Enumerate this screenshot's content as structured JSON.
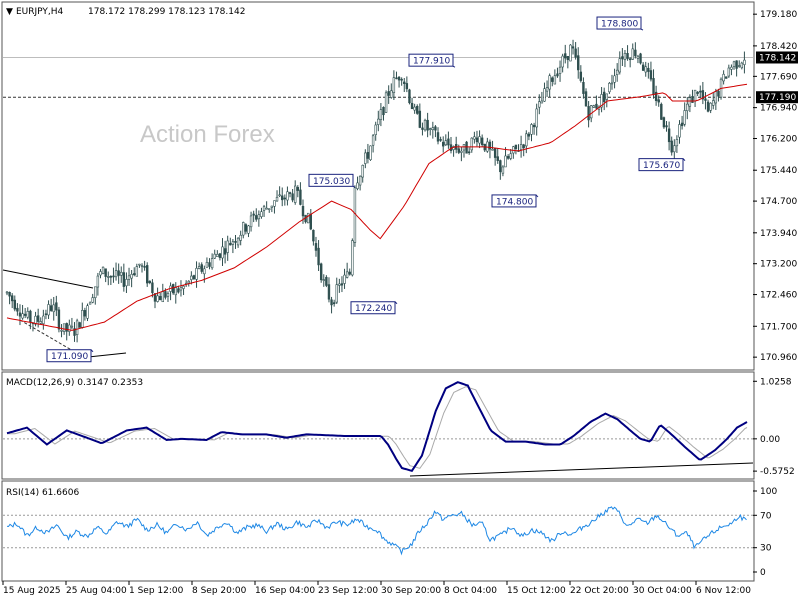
{
  "header": {
    "symbol": "EURJPY,H4",
    "ohlc": "178.172 178.299 178.123 178.142"
  },
  "watermark": "Action Forex",
  "chart_data": [
    {
      "type": "candlestick",
      "name": "price",
      "ylim": [
        170.7,
        179.4
      ],
      "y_ticks": [
        "179.180",
        "178.420",
        "177.690",
        "176.940",
        "176.200",
        "175.440",
        "174.700",
        "173.940",
        "173.200",
        "172.460",
        "171.700",
        "170.960"
      ],
      "x_labels": [
        "15 Aug 2025",
        "25 Aug 04:00",
        "1 Sep 12:00",
        "8 Sep 20:00",
        "16 Sep 04:00",
        "23 Sep 12:00",
        "30 Sep 20:00",
        "8 Oct 04:00",
        "15 Oct 12:00",
        "22 Oct 20:00",
        "30 Oct 04:00",
        "6 Nov 12:00"
      ],
      "bars": 285,
      "anchors": [
        [
          0,
          172.5
        ],
        [
          12,
          171.9
        ],
        [
          18,
          171.8
        ],
        [
          28,
          172.2
        ],
        [
          34,
          171.6
        ],
        [
          42,
          171.6
        ],
        [
          48,
          172.1
        ],
        [
          58,
          173.0
        ],
        [
          72,
          172.8
        ],
        [
          82,
          173.2
        ],
        [
          92,
          172.4
        ],
        [
          108,
          172.6
        ],
        [
          126,
          173.3
        ],
        [
          140,
          173.8
        ],
        [
          152,
          174.3
        ],
        [
          165,
          174.7
        ],
        [
          178,
          174.9
        ],
        [
          186,
          174.2
        ],
        [
          196,
          172.6
        ],
        [
          200,
          172.3
        ],
        [
          207,
          172.8
        ],
        [
          212,
          173.0
        ],
        [
          214,
          175.1
        ],
        [
          222,
          175.8
        ],
        [
          236,
          177.4
        ],
        [
          243,
          177.8
        ],
        [
          252,
          176.7
        ],
        [
          268,
          176.1
        ],
        [
          282,
          175.9
        ],
        [
          290,
          176.3
        ],
        [
          304,
          175.5
        ],
        [
          320,
          176.2
        ],
        [
          335,
          177.6
        ],
        [
          348,
          178.4
        ],
        [
          358,
          176.8
        ],
        [
          370,
          177.3
        ],
        [
          378,
          178.2
        ],
        [
          388,
          178.3
        ],
        [
          398,
          177.4
        ],
        [
          410,
          176.0
        ],
        [
          418,
          176.9
        ],
        [
          426,
          177.4
        ],
        [
          432,
          176.8
        ],
        [
          445,
          177.9
        ],
        [
          456,
          178.2
        ]
      ],
      "moving_average": [
        [
          0,
          171.9
        ],
        [
          40,
          171.6
        ],
        [
          60,
          171.8
        ],
        [
          80,
          172.3
        ],
        [
          100,
          172.6
        ],
        [
          120,
          172.8
        ],
        [
          140,
          173.1
        ],
        [
          160,
          173.6
        ],
        [
          180,
          174.2
        ],
        [
          200,
          174.7
        ],
        [
          212,
          174.5
        ],
        [
          224,
          174.0
        ],
        [
          230,
          173.8
        ],
        [
          245,
          174.6
        ],
        [
          260,
          175.6
        ],
        [
          275,
          176.0
        ],
        [
          295,
          176.0
        ],
        [
          315,
          175.9
        ],
        [
          335,
          176.1
        ],
        [
          350,
          176.5
        ],
        [
          370,
          177.1
        ],
        [
          390,
          177.2
        ],
        [
          405,
          177.3
        ],
        [
          410,
          177.1
        ],
        [
          425,
          177.1
        ],
        [
          440,
          177.4
        ],
        [
          456,
          177.5
        ]
      ],
      "price_labels": [
        {
          "text": "171.090",
          "bar": 93,
          "price": 171.09,
          "side": "bottom"
        },
        {
          "text": "172.240",
          "bar": 397,
          "price": 172.24,
          "side": "bottom"
        },
        {
          "text": "175.030",
          "bar": 355,
          "price": 175.03,
          "side": "top"
        },
        {
          "text": "177.910",
          "bar": 455,
          "price": 177.91,
          "side": "top"
        },
        {
          "text": "174.800",
          "bar": 538,
          "price": 174.8,
          "side": "bottom"
        },
        {
          "text": "178.800",
          "bar": 643,
          "price": 178.8,
          "side": "top"
        },
        {
          "text": "175.670",
          "bar": 685,
          "price": 175.67,
          "side": "bottom"
        }
      ],
      "current_price": "178.142",
      "level_line": "177.190",
      "current_value": 178.142,
      "level_value": 177.19
    },
    {
      "type": "line",
      "name": "macd",
      "label": "MACD(12,26,9) 0.3147 0.2353",
      "ylim": [
        -0.68,
        1.12
      ],
      "y_ticks": [
        "1.0258",
        "0.00",
        "-0.5752"
      ],
      "macd": [
        [
          0,
          0.1
        ],
        [
          20,
          0.2
        ],
        [
          40,
          -0.1
        ],
        [
          60,
          0.15
        ],
        [
          80,
          0.02
        ],
        [
          95,
          -0.08
        ],
        [
          120,
          0.15
        ],
        [
          140,
          0.2
        ],
        [
          160,
          -0.02
        ],
        [
          175,
          0.0
        ],
        [
          200,
          -0.02
        ],
        [
          215,
          0.12
        ],
        [
          235,
          0.08
        ],
        [
          260,
          0.08
        ],
        [
          280,
          0.02
        ],
        [
          300,
          0.08
        ],
        [
          340,
          0.05
        ],
        [
          360,
          0.05
        ],
        [
          375,
          0.05
        ],
        [
          382,
          -0.1
        ],
        [
          390,
          -0.35
        ],
        [
          396,
          -0.52
        ],
        [
          406,
          -0.57
        ],
        [
          416,
          -0.3
        ],
        [
          430,
          0.5
        ],
        [
          440,
          0.9
        ],
        [
          452,
          1.01
        ],
        [
          462,
          0.95
        ],
        [
          472,
          0.6
        ],
        [
          485,
          0.15
        ],
        [
          500,
          -0.05
        ],
        [
          520,
          -0.05
        ],
        [
          540,
          -0.1
        ],
        [
          555,
          -0.1
        ],
        [
          568,
          0.05
        ],
        [
          585,
          0.3
        ],
        [
          600,
          0.45
        ],
        [
          612,
          0.35
        ],
        [
          625,
          0.15
        ],
        [
          635,
          0.0
        ],
        [
          645,
          -0.05
        ],
        [
          655,
          0.25
        ],
        [
          665,
          0.1
        ],
        [
          680,
          -0.15
        ],
        [
          695,
          -0.38
        ],
        [
          710,
          -0.2
        ],
        [
          722,
          0.0
        ],
        [
          732,
          0.2
        ],
        [
          742,
          0.3
        ]
      ],
      "signal_offset": 8
    },
    {
      "type": "line",
      "name": "rsi",
      "label": "RSI(14) 61.6606",
      "ylim": [
        0,
        100
      ],
      "y_ticks": [
        "100",
        "70",
        "30",
        "0"
      ],
      "rsi": [
        [
          0,
          55
        ],
        [
          10,
          60
        ],
        [
          20,
          45
        ],
        [
          30,
          55
        ],
        [
          40,
          48
        ],
        [
          50,
          58
        ],
        [
          60,
          42
        ],
        [
          70,
          50
        ],
        [
          80,
          44
        ],
        [
          90,
          55
        ],
        [
          100,
          47
        ],
        [
          110,
          62
        ],
        [
          120,
          56
        ],
        [
          130,
          65
        ],
        [
          140,
          52
        ],
        [
          150,
          58
        ],
        [
          160,
          48
        ],
        [
          170,
          60
        ],
        [
          180,
          52
        ],
        [
          190,
          62
        ],
        [
          200,
          45
        ],
        [
          210,
          55
        ],
        [
          220,
          62
        ],
        [
          230,
          48
        ],
        [
          240,
          55
        ],
        [
          250,
          58
        ],
        [
          260,
          50
        ],
        [
          270,
          60
        ],
        [
          280,
          52
        ],
        [
          290,
          62
        ],
        [
          300,
          55
        ],
        [
          310,
          64
        ],
        [
          320,
          55
        ],
        [
          330,
          62
        ],
        [
          340,
          58
        ],
        [
          350,
          65
        ],
        [
          360,
          56
        ],
        [
          370,
          52
        ],
        [
          378,
          40
        ],
        [
          386,
          34
        ],
        [
          395,
          25
        ],
        [
          405,
          35
        ],
        [
          412,
          50
        ],
        [
          420,
          60
        ],
        [
          428,
          75
        ],
        [
          436,
          65
        ],
        [
          445,
          70
        ],
        [
          455,
          72
        ],
        [
          465,
          58
        ],
        [
          475,
          60
        ],
        [
          483,
          40
        ],
        [
          495,
          46
        ],
        [
          505,
          56
        ],
        [
          515,
          44
        ],
        [
          525,
          52
        ],
        [
          535,
          48
        ],
        [
          545,
          38
        ],
        [
          555,
          50
        ],
        [
          565,
          46
        ],
        [
          575,
          55
        ],
        [
          585,
          62
        ],
        [
          595,
          72
        ],
        [
          605,
          80
        ],
        [
          613,
          72
        ],
        [
          620,
          55
        ],
        [
          630,
          65
        ],
        [
          640,
          60
        ],
        [
          650,
          70
        ],
        [
          660,
          58
        ],
        [
          670,
          45
        ],
        [
          680,
          48
        ],
        [
          688,
          30
        ],
        [
          695,
          38
        ],
        [
          705,
          48
        ],
        [
          715,
          56
        ],
        [
          725,
          60
        ],
        [
          732,
          70
        ],
        [
          740,
          62
        ]
      ]
    }
  ]
}
